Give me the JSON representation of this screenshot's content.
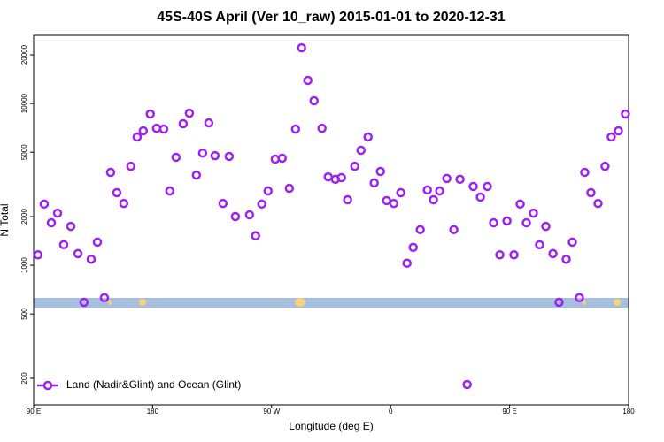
{
  "chart_data": {
    "type": "scatter",
    "title": "45S-40S April (Ver 10_raw)   2015-01-01 to 2020-12-31",
    "x_label": "Longitude (deg E)",
    "y_label": "N Total",
    "log_y": true,
    "legend_position": "bottom-left",
    "xlim": [
      90,
      540
    ],
    "ylim": [
      137,
      26400
    ],
    "xticks": [
      {
        "value": 90,
        "label": "90 E"
      },
      180,
      {
        "value": 270,
        "label": "90 W"
      },
      {
        "value": 360,
        "label": "0"
      },
      {
        "value": 450,
        "label": "90 E"
      },
      {
        "value": 540,
        "label": "180"
      }
    ],
    "yticks": [
      200,
      500,
      1000,
      2000,
      5000,
      10000,
      20000
    ],
    "series": [
      {
        "name": "Land (Nadir&Glint) and Ocean (Glint)",
        "color": "#a020f0",
        "x": [
          93.3,
          98.0,
          103.4,
          108.1,
          112.7,
          118.1,
          123.5,
          128.1,
          133.5,
          138.2,
          143.5,
          148.2,
          152.9,
          158.2,
          163.5,
          168.3,
          172.9,
          178.2,
          183.0,
          188.4,
          193.0,
          197.7,
          203.1,
          207.8,
          213.1,
          217.8,
          222.5,
          227.2,
          233.2,
          237.9,
          242.6,
          253.3,
          257.9,
          262.6,
          267.3,
          272.7,
          278.0,
          283.4,
          288.1,
          292.7,
          297.4,
          302.1,
          308.1,
          312.8,
          318.2,
          322.8,
          327.5,
          332.9,
          337.6,
          342.9,
          347.6,
          352.3,
          357.0,
          362.4,
          367.7,
          372.4,
          377.1,
          382.4,
          387.8,
          392.4,
          397.1,
          402.5,
          407.8,
          412.5,
          417.9,
          422.5,
          427.9,
          433.2,
          437.9,
          442.6,
          448.0,
          453.3,
          458.0,
          462.7,
          468.0,
          472.7,
          477.4,
          482.8,
          487.4,
          492.8,
          497.5,
          502.8,
          506.8,
          511.5,
          516.9,
          522.2,
          526.9,
          532.3,
          537.6
        ],
        "values": [
          1160,
          2390,
          1830,
          2100,
          1340,
          1740,
          1180,
          590,
          1090,
          1390,
          630,
          3750,
          2810,
          2410,
          4090,
          6210,
          6780,
          8610,
          7030,
          6950,
          2880,
          4650,
          7500,
          8710,
          3610,
          4940,
          7590,
          4760,
          2410,
          4710,
          2000,
          2050,
          1520,
          2390,
          2880,
          4530,
          4590,
          2990,
          6950,
          22100,
          13900,
          10400,
          7030,
          3520,
          3400,
          3480,
          2540,
          4090,
          5140,
          6210,
          3230,
          3800,
          2510,
          2410,
          2810,
          1030,
          1290,
          1660,
          2920,
          2540,
          2880,
          3440,
          1660,
          3400,
          183,
          3070,
          2640,
          3070,
          1830,
          1160,
          1880,
          1160,
          2390,
          1830,
          2100,
          1340,
          1740,
          1180,
          590,
          1090,
          1390,
          630,
          3750,
          2810,
          2410,
          4090,
          6210,
          6780,
          8610
        ]
      }
    ]
  }
}
